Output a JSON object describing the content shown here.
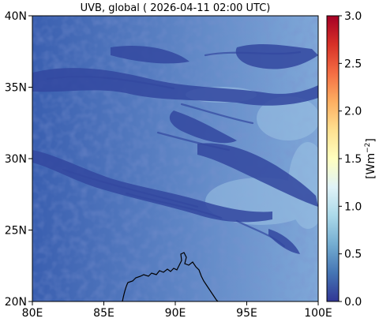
{
  "title": "UVB, global ( 2026-04-11 02:00 UTC)",
  "x_tick_labels": [
    "80E",
    "85E",
    "90E",
    "95E",
    "100E"
  ],
  "y_tick_labels": [
    "20N",
    "25N",
    "30N",
    "35N",
    "40N"
  ],
  "colorbar": {
    "label_main": "[Wm",
    "label_sup": "−2",
    "label_close": "]",
    "ticks": [
      "0.0",
      "0.5",
      "1.0",
      "1.5",
      "2.0",
      "2.5",
      "3.0"
    ],
    "colormap": "RdYlBu_r",
    "stops": [
      "#313695",
      "#4575b4",
      "#74add1",
      "#abd9e9",
      "#e0f3f8",
      "#ffffbf",
      "#fee090",
      "#fdae61",
      "#f46d43",
      "#d73027",
      "#a50026"
    ]
  },
  "map_colors": {
    "base_west": "#3a5fb0",
    "base_east": "#7fa8d8",
    "cloud_band": "#3348a0",
    "clear_patch": "#9cc3e4",
    "coastline": "#000000"
  },
  "chart_data": {
    "type": "heatmap",
    "title": "UVB, global ( 2026-04-11 02:00 UTC)",
    "x_range": [
      80,
      100
    ],
    "y_range": [
      20,
      40
    ],
    "x_ticks": [
      80,
      85,
      90,
      95,
      100
    ],
    "y_ticks": [
      20,
      25,
      30,
      35,
      40
    ],
    "value_range": [
      0.0,
      3.0
    ],
    "value_unit": "[Wm−2]",
    "colorbar_ticks": [
      0.0,
      0.5,
      1.0,
      1.5,
      2.0,
      2.5,
      3.0
    ],
    "approx_values": {
      "western_edge": 0.55,
      "central_region": 0.8,
      "eastern_clear_areas": 1.0,
      "cloud_bands": 0.35
    }
  }
}
